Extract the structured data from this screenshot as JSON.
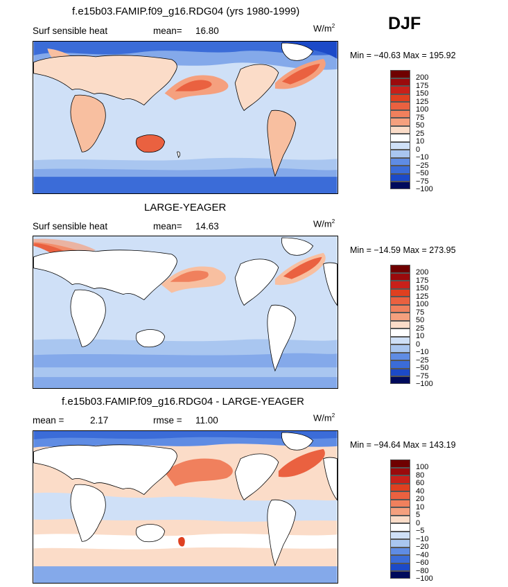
{
  "season": "DJF",
  "colors": {
    "land": "#ffffff",
    "coast": "#000000",
    "palette_pos": [
      "#ffffff",
      "#fbdcc8",
      "#f8bfa0",
      "#f5a07e",
      "#f0805d",
      "#ea6140",
      "#df4020",
      "#c8201a",
      "#9a0a0c",
      "#6f0000"
    ],
    "palette_neg": [
      "#ffffff",
      "#cfe0f7",
      "#a9c6f0",
      "#84a9ea",
      "#5f8ce4",
      "#3b6cd8",
      "#1c4ac8",
      "#0b2ab0",
      "#081a8a",
      "#000b5c"
    ]
  },
  "panels": [
    {
      "title": "f.e15b03.FAMIP.f09_g16.RDG04 (yrs 1980-1999)",
      "left_label": "Surf sensible heat",
      "mean_label": "mean=",
      "mean_value": "16.80",
      "units": "W/m",
      "units_sup": "2",
      "minmax": "Min = −40.63 Max = 195.92",
      "ticks": [
        "200",
        "175",
        "150",
        "125",
        "100",
        "75",
        "50",
        "25",
        "10",
        "0",
        "−10",
        "−25",
        "−50",
        "−75",
        "−100"
      ]
    },
    {
      "title": "LARGE-YEAGER",
      "left_label": "Surf sensible heat",
      "mean_label": "mean=",
      "mean_value": "14.63",
      "units": "W/m",
      "units_sup": "2",
      "minmax": "Min = −14.59 Max = 273.95",
      "ticks": [
        "200",
        "175",
        "150",
        "125",
        "100",
        "75",
        "50",
        "25",
        "10",
        "0",
        "−10",
        "−25",
        "−50",
        "−75",
        "−100"
      ]
    },
    {
      "title": "f.e15b03.FAMIP.f09_g16.RDG04 - LARGE-YEAGER",
      "left_label": "mean =",
      "mean_label": "",
      "mean_value": "2.17",
      "rmse_label": "rmse =",
      "rmse_value": "11.00",
      "units": "W/m",
      "units_sup": "2",
      "minmax": "Min = −94.64 Max = 143.19",
      "ticks": [
        "100",
        "80",
        "60",
        "40",
        "20",
        "10",
        "5",
        "0",
        "−5",
        "−10",
        "−20",
        "−40",
        "−60",
        "−80",
        "−100"
      ]
    }
  ]
}
